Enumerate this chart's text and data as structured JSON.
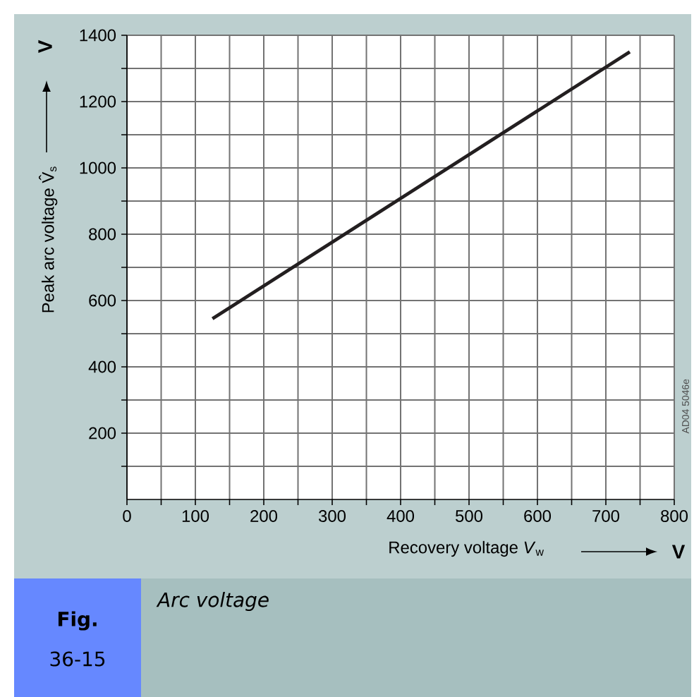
{
  "chart_data": {
    "type": "line",
    "title": "Arc voltage",
    "xlabel": "Recovery voltage *V*$_{w}$",
    "ylabel": "Peak arc voltage V̂$_{s}$",
    "x": [
      125,
      735
    ],
    "series": [
      {
        "color": "#231f20",
        "values": [
          545,
          1350
        ]
      }
    ],
    "xlim": [
      0,
      800
    ],
    "ylim": [
      0,
      1400
    ],
    "xticks": [
      0,
      {
        "value": 50,
        "label": null
      },
      100,
      {
        "value": 150,
        "label": null
      },
      200,
      {
        "value": 250,
        "label": null
      },
      300,
      {
        "value": 350,
        "label": null
      },
      400,
      {
        "value": 450,
        "label": null
      },
      500,
      {
        "value": 550,
        "label": null
      },
      600,
      {
        "value": 650,
        "label": null
      },
      700,
      {
        "value": 750,
        "label": null
      },
      800
    ],
    "yticks": [
      {
        "value": 100,
        "label": null
      },
      200,
      {
        "value": 300,
        "label": null
      },
      400,
      {
        "value": 500,
        "label": null
      },
      600,
      {
        "value": 700,
        "label": null
      },
      800,
      {
        "value": 900,
        "label": null
      },
      1000,
      {
        "value": 1100,
        "label": null
      },
      1200,
      {
        "value": 1300,
        "label": null
      },
      1400
    ],
    "grid": true,
    "marker": "none",
    "line_style": "solid",
    "annotations": [
      "V",
      "V",
      "AD04 5046e",
      "Fig.",
      "36-15"
    ]
  }
}
